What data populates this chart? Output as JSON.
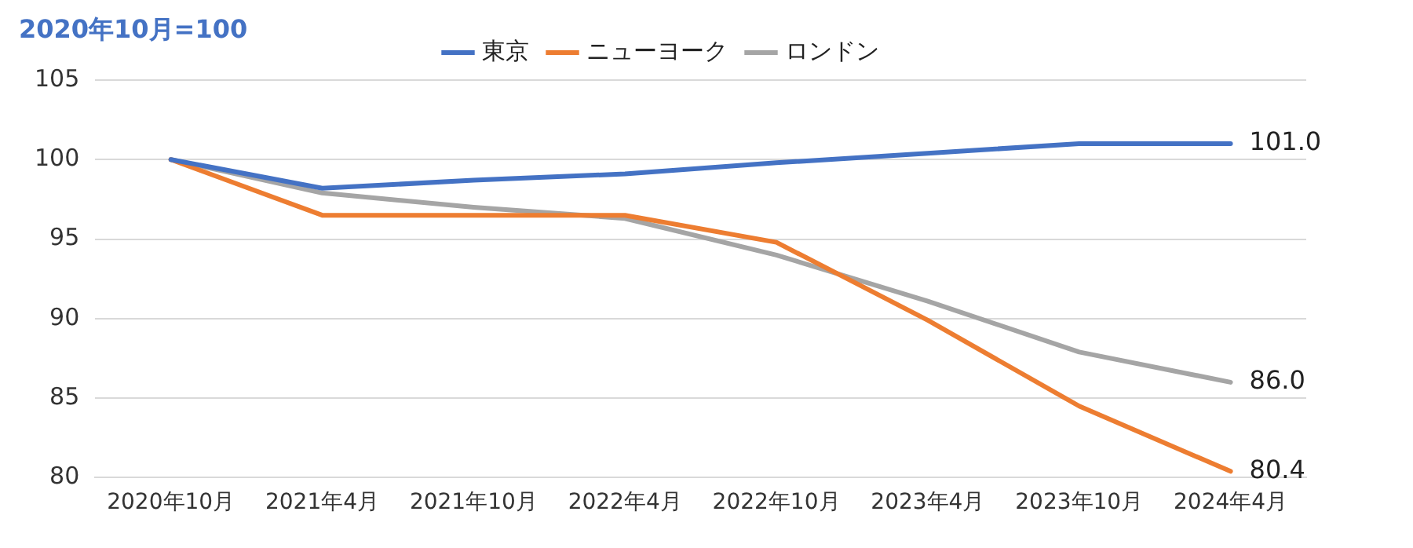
{
  "chart_data": {
    "type": "line",
    "title": "2020年10月=100",
    "categories": [
      "2020年10月",
      "2021年4月",
      "2021年10月",
      "2022年4月",
      "2022年10月",
      "2023年4月",
      "2023年10月",
      "2024年4月"
    ],
    "series": [
      {
        "name": "東京",
        "color": "#4472c4",
        "values": [
          100,
          98.2,
          98.7,
          99.1,
          99.8,
          100.4,
          101.0,
          101.0
        ],
        "value_labels": [
          null,
          null,
          null,
          null,
          null,
          null,
          null,
          "101.0"
        ]
      },
      {
        "name": "ニューヨーク",
        "color": "#ed7d31",
        "values": [
          100,
          96.5,
          96.5,
          96.5,
          94.8,
          89.9,
          84.5,
          80.4
        ],
        "value_labels": [
          null,
          null,
          null,
          null,
          null,
          null,
          null,
          "80.4"
        ]
      },
      {
        "name": "ロンドン",
        "color": "#a5a5a5",
        "values": [
          100,
          97.9,
          97.0,
          96.3,
          94.0,
          91.1,
          87.9,
          86.0
        ],
        "value_labels": [
          null,
          null,
          null,
          null,
          null,
          null,
          null,
          "86.0"
        ]
      }
    ],
    "ylim": [
      80,
      105
    ],
    "yticks": [
      80,
      85,
      90,
      95,
      100,
      105
    ],
    "grid": "y",
    "legend": "top",
    "marker": "none",
    "line_style": "solid"
  }
}
